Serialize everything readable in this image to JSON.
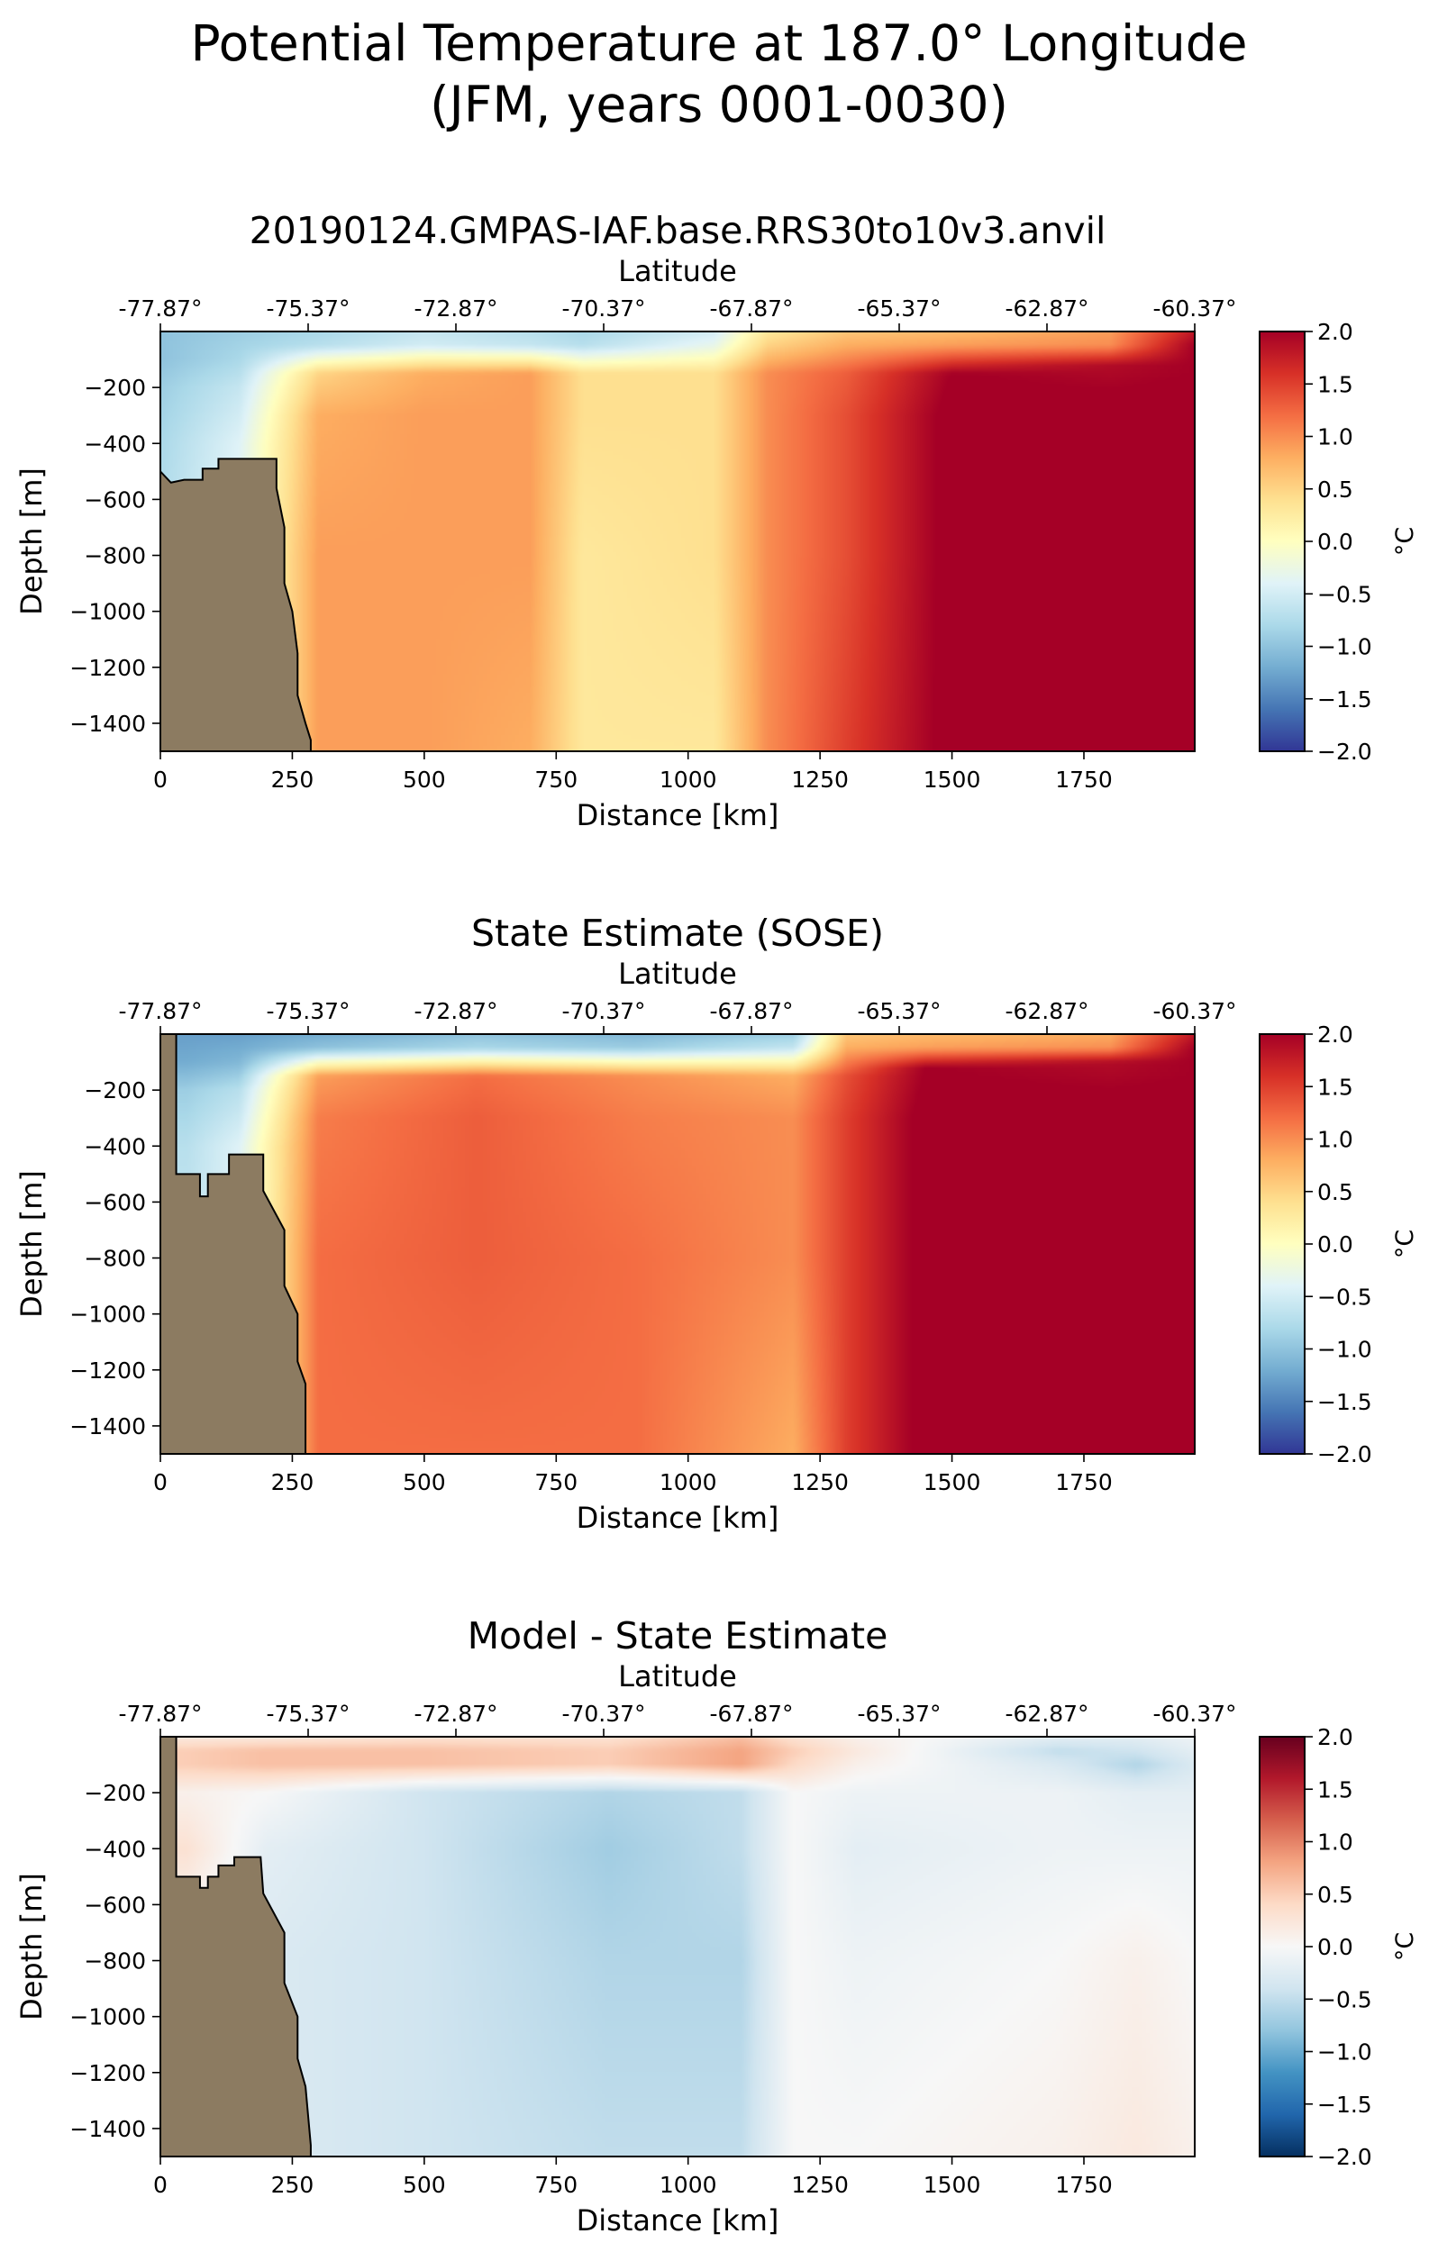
{
  "figure": {
    "title_line1": "Potential Temperature at 187.0° Longitude",
    "title_line2": "(JFM, years 0001-0030)"
  },
  "chart_data": [
    {
      "type": "heatmap",
      "title": "20190124.GMPAS-IAF.base.RRS30to10v3.anvil",
      "xlabel": "Distance [km]",
      "ylabel": "Depth [m]",
      "x2label": "Latitude",
      "colorbar_label": "°C",
      "colormap": "RdYlBu_r",
      "xlim": [
        0,
        1960
      ],
      "ylim": [
        -1500,
        0
      ],
      "clim": [
        -2.0,
        2.0
      ],
      "x_ticks": [
        0,
        250,
        500,
        750,
        1000,
        1250,
        1500,
        1750
      ],
      "y_ticks": [
        -200,
        -400,
        -600,
        -800,
        -1000,
        -1200,
        -1400
      ],
      "lat_ticks": [
        "-77.87°",
        "-75.37°",
        "-72.87°",
        "-70.37°",
        "-67.87°",
        "-65.37°",
        "-62.87°",
        "-60.37°"
      ],
      "lat_tick_x": [
        0,
        280,
        560,
        840,
        1120,
        1400,
        1680,
        1960
      ],
      "colorbar_ticks": [
        "2.0",
        "1.5",
        "1.0",
        "0.5",
        "0.0",
        "−0.5",
        "−1.0",
        "−1.5",
        "−2.0"
      ],
      "land_color": "#8c7b61",
      "seafloor": [
        [
          0,
          -500
        ],
        [
          20,
          -540
        ],
        [
          45,
          -530
        ],
        [
          80,
          -530
        ],
        [
          80,
          -490
        ],
        [
          110,
          -490
        ],
        [
          110,
          -455
        ],
        [
          220,
          -455
        ],
        [
          220,
          -560
        ],
        [
          235,
          -700
        ],
        [
          235,
          -900
        ],
        [
          250,
          -1000
        ],
        [
          260,
          -1150
        ],
        [
          260,
          -1300
        ],
        [
          275,
          -1400
        ],
        [
          285,
          -1460
        ],
        [
          285,
          -1500
        ]
      ],
      "temperature_profiles": [
        {
          "x": 0,
          "z": [
            0,
            -100,
            -200,
            -400,
            -800,
            -1500
          ],
          "t": [
            -1.0,
            -1.0,
            -0.9,
            -0.8,
            -0.7,
            -0.7
          ]
        },
        {
          "x": 150,
          "z": [
            0,
            -100,
            -200,
            -400,
            -800,
            -1500
          ],
          "t": [
            -0.9,
            -0.8,
            -0.6,
            -0.4,
            -0.3,
            -0.3
          ]
        },
        {
          "x": 300,
          "z": [
            0,
            -50,
            -150,
            -300,
            -800,
            -1500
          ],
          "t": [
            -0.8,
            -0.7,
            0.5,
            0.8,
            0.9,
            0.9
          ]
        },
        {
          "x": 500,
          "z": [
            0,
            -50,
            -150,
            -300,
            -800,
            -1500
          ],
          "t": [
            -0.6,
            -0.5,
            0.8,
            0.9,
            0.9,
            0.9
          ]
        },
        {
          "x": 700,
          "z": [
            0,
            -50,
            -150,
            -300,
            -800,
            -1500
          ],
          "t": [
            -0.7,
            -0.6,
            0.9,
            0.9,
            0.9,
            0.8
          ]
        },
        {
          "x": 800,
          "z": [
            0,
            -50,
            -150,
            -300,
            -800,
            -1500
          ],
          "t": [
            -0.8,
            -0.7,
            0.4,
            0.4,
            0.3,
            0.3
          ]
        },
        {
          "x": 1050,
          "z": [
            0,
            -50,
            -150,
            -300,
            -800,
            -1500
          ],
          "t": [
            -0.5,
            -0.3,
            0.4,
            0.4,
            0.4,
            0.3
          ]
        },
        {
          "x": 1150,
          "z": [
            0,
            -50,
            -150,
            -300,
            -800,
            -1500
          ],
          "t": [
            0.3,
            0.5,
            1.0,
            1.0,
            1.0,
            1.0
          ]
        },
        {
          "x": 1300,
          "z": [
            0,
            -50,
            -150,
            -300,
            -800,
            -1500
          ],
          "t": [
            0.6,
            0.8,
            1.3,
            1.4,
            1.4,
            1.5
          ]
        },
        {
          "x": 1500,
          "z": [
            0,
            -50,
            -150,
            -300,
            -800,
            -1500
          ],
          "t": [
            0.7,
            0.9,
            2.0,
            2.1,
            2.1,
            2.1
          ]
        },
        {
          "x": 1800,
          "z": [
            0,
            -50,
            -120,
            -300,
            -800,
            -1500
          ],
          "t": [
            0.9,
            1.0,
            1.9,
            2.1,
            2.1,
            2.1
          ]
        },
        {
          "x": 1960,
          "z": [
            0,
            -50,
            -150,
            -300,
            -800,
            -1500
          ],
          "t": [
            1.8,
            2.0,
            2.0,
            2.1,
            2.1,
            2.1
          ]
        }
      ]
    },
    {
      "type": "heatmap",
      "title": "State Estimate (SOSE)",
      "xlabel": "Distance [km]",
      "ylabel": "Depth [m]",
      "x2label": "Latitude",
      "colorbar_label": "°C",
      "colormap": "RdYlBu_r",
      "xlim": [
        0,
        1960
      ],
      "ylim": [
        -1500,
        0
      ],
      "clim": [
        -2.0,
        2.0
      ],
      "x_ticks": [
        0,
        250,
        500,
        750,
        1000,
        1250,
        1500,
        1750
      ],
      "y_ticks": [
        -200,
        -400,
        -600,
        -800,
        -1000,
        -1200,
        -1400
      ],
      "lat_ticks": [
        "-77.87°",
        "-75.37°",
        "-72.87°",
        "-70.37°",
        "-67.87°",
        "-65.37°",
        "-62.87°",
        "-60.37°"
      ],
      "lat_tick_x": [
        0,
        280,
        560,
        840,
        1120,
        1400,
        1680,
        1960
      ],
      "colorbar_ticks": [
        "2.0",
        "1.5",
        "1.0",
        "0.5",
        "0.0",
        "−0.5",
        "−1.0",
        "−1.5",
        "−2.0"
      ],
      "land_color": "#8c7b61",
      "seafloor": [
        [
          0,
          0
        ],
        [
          30,
          0
        ],
        [
          30,
          -500
        ],
        [
          75,
          -500
        ],
        [
          75,
          -580
        ],
        [
          90,
          -580
        ],
        [
          90,
          -500
        ],
        [
          130,
          -500
        ],
        [
          130,
          -430
        ],
        [
          195,
          -430
        ],
        [
          195,
          -560
        ],
        [
          235,
          -700
        ],
        [
          235,
          -900
        ],
        [
          260,
          -1000
        ],
        [
          260,
          -1170
        ],
        [
          275,
          -1250
        ],
        [
          275,
          -1500
        ]
      ],
      "temperature_profiles": [
        {
          "x": 50,
          "z": [
            0,
            -100,
            -200,
            -400,
            -800,
            -1500
          ],
          "t": [
            -1.3,
            -1.2,
            -0.9,
            -0.7,
            -0.6,
            -0.6
          ]
        },
        {
          "x": 150,
          "z": [
            0,
            -100,
            -200,
            -400,
            -800,
            -1500
          ],
          "t": [
            -1.3,
            -1.1,
            -0.7,
            -0.4,
            -0.4,
            -0.4
          ]
        },
        {
          "x": 300,
          "z": [
            0,
            -50,
            -150,
            -300,
            -800,
            -1500
          ],
          "t": [
            -1.2,
            -1.0,
            0.9,
            1.1,
            1.2,
            1.2
          ]
        },
        {
          "x": 600,
          "z": [
            0,
            -50,
            -150,
            -300,
            -800,
            -1500
          ],
          "t": [
            -1.0,
            -0.8,
            1.2,
            1.3,
            1.3,
            1.2
          ]
        },
        {
          "x": 900,
          "z": [
            0,
            -50,
            -150,
            -300,
            -800,
            -1500
          ],
          "t": [
            -1.1,
            -0.9,
            1.0,
            1.1,
            1.2,
            1.2
          ]
        },
        {
          "x": 1200,
          "z": [
            0,
            -50,
            -150,
            -300,
            -800,
            -1500
          ],
          "t": [
            -0.9,
            -0.6,
            0.8,
            1.0,
            1.0,
            0.8
          ]
        },
        {
          "x": 1300,
          "z": [
            0,
            -50,
            -150,
            -300,
            -800,
            -1500
          ],
          "t": [
            0.6,
            0.8,
            1.4,
            1.5,
            1.5,
            1.5
          ]
        },
        {
          "x": 1450,
          "z": [
            0,
            -50,
            -120,
            -300,
            -800,
            -1500
          ],
          "t": [
            0.7,
            0.9,
            2.0,
            2.1,
            2.1,
            2.1
          ]
        },
        {
          "x": 1800,
          "z": [
            0,
            -50,
            -100,
            -300,
            -800,
            -1500
          ],
          "t": [
            0.8,
            1.0,
            1.9,
            2.1,
            2.1,
            2.1
          ]
        },
        {
          "x": 1960,
          "z": [
            0,
            -50,
            -150,
            -300,
            -800,
            -1500
          ],
          "t": [
            1.8,
            2.0,
            2.0,
            2.1,
            2.1,
            2.1
          ]
        }
      ]
    },
    {
      "type": "heatmap",
      "title": "Model - State Estimate",
      "xlabel": "Distance [km]",
      "ylabel": "Depth [m]",
      "x2label": "Latitude",
      "colorbar_label": "°C",
      "colormap": "RdBu_r",
      "xlim": [
        0,
        1960
      ],
      "ylim": [
        -1500,
        0
      ],
      "clim": [
        -2.0,
        2.0
      ],
      "x_ticks": [
        0,
        250,
        500,
        750,
        1000,
        1250,
        1500,
        1750
      ],
      "y_ticks": [
        -200,
        -400,
        -600,
        -800,
        -1000,
        -1200,
        -1400
      ],
      "lat_ticks": [
        "-77.87°",
        "-75.37°",
        "-72.87°",
        "-70.37°",
        "-67.87°",
        "-65.37°",
        "-62.87°",
        "-60.37°"
      ],
      "lat_tick_x": [
        0,
        280,
        560,
        840,
        1120,
        1400,
        1680,
        1960
      ],
      "colorbar_ticks": [
        "2.0",
        "1.5",
        "1.0",
        "0.5",
        "0.0",
        "−0.5",
        "−1.0",
        "−1.5",
        "−2.0"
      ],
      "land_color": "#8c7b61",
      "seafloor": [
        [
          0,
          0
        ],
        [
          30,
          0
        ],
        [
          30,
          -500
        ],
        [
          75,
          -500
        ],
        [
          75,
          -540
        ],
        [
          90,
          -540
        ],
        [
          90,
          -500
        ],
        [
          110,
          -500
        ],
        [
          110,
          -460
        ],
        [
          140,
          -460
        ],
        [
          140,
          -430
        ],
        [
          190,
          -430
        ],
        [
          195,
          -560
        ],
        [
          235,
          -700
        ],
        [
          235,
          -880
        ],
        [
          260,
          -1000
        ],
        [
          260,
          -1150
        ],
        [
          275,
          -1250
        ],
        [
          285,
          -1460
        ],
        [
          285,
          -1500
        ]
      ],
      "temperature_profiles": [
        {
          "x": 50,
          "z": [
            0,
            -50,
            -100,
            -200,
            -400,
            -600,
            -1500
          ],
          "t": [
            0.2,
            0.5,
            0.5,
            0.1,
            0.3,
            0.1,
            0.0
          ]
        },
        {
          "x": 200,
          "z": [
            0,
            -50,
            -100,
            -200,
            -400,
            -800,
            -1500
          ],
          "t": [
            0.2,
            0.6,
            0.6,
            0.0,
            -0.2,
            -0.3,
            -0.3
          ]
        },
        {
          "x": 500,
          "z": [
            0,
            -50,
            -100,
            -200,
            -400,
            -800,
            -1500
          ],
          "t": [
            0.3,
            0.6,
            0.6,
            -0.4,
            -0.4,
            -0.4,
            -0.4
          ]
        },
        {
          "x": 850,
          "z": [
            0,
            -50,
            -100,
            -200,
            -400,
            -800,
            -1500
          ],
          "t": [
            0.3,
            0.5,
            0.5,
            -0.6,
            -0.7,
            -0.6,
            -0.5
          ]
        },
        {
          "x": 1100,
          "z": [
            0,
            -50,
            -100,
            -200,
            -400,
            -800,
            -1500
          ],
          "t": [
            0.6,
            0.8,
            0.8,
            -0.5,
            -0.5,
            -0.6,
            -0.5
          ]
        },
        {
          "x": 1200,
          "z": [
            0,
            -50,
            -100,
            -200,
            -400,
            -800,
            -1500
          ],
          "t": [
            0.3,
            0.5,
            0.4,
            0.0,
            0.0,
            0.0,
            0.0
          ]
        },
        {
          "x": 1320,
          "z": [
            0,
            -50,
            -100,
            -200,
            -400,
            -800,
            -1500
          ],
          "t": [
            0.1,
            0.2,
            0.1,
            -0.1,
            -0.2,
            -0.1,
            0.0
          ]
        },
        {
          "x": 1700,
          "z": [
            0,
            -50,
            -100,
            -200,
            -400,
            -800,
            -1500
          ],
          "t": [
            -0.2,
            -0.5,
            -0.3,
            -0.1,
            -0.1,
            0.0,
            0.1
          ]
        },
        {
          "x": 1850,
          "z": [
            0,
            -50,
            -100,
            -200,
            -400,
            -800,
            -1500
          ],
          "t": [
            -0.2,
            -0.4,
            -0.6,
            -0.2,
            -0.1,
            0.1,
            0.2
          ]
        },
        {
          "x": 1960,
          "z": [
            0,
            -50,
            -100,
            -200,
            -400,
            -800,
            -1500
          ],
          "t": [
            -0.1,
            -0.2,
            -0.3,
            -0.2,
            -0.1,
            0.0,
            0.1
          ]
        }
      ]
    }
  ]
}
